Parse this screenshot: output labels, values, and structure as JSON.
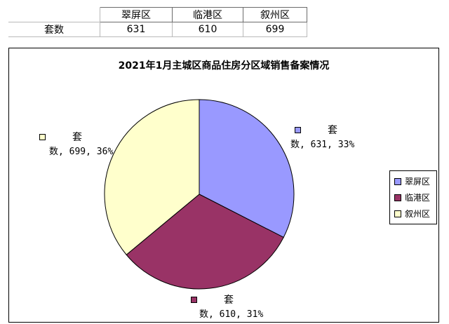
{
  "sheet": {
    "header": [
      "",
      "翠屏区",
      "临港区",
      "叙州区"
    ],
    "row": [
      "套数",
      "631",
      "610",
      "699"
    ]
  },
  "chart_data": {
    "type": "pie",
    "title": "2021年1月主城区商品住房分区域销售备案情况",
    "series_name": "套数",
    "categories": [
      "翠屏区",
      "临港区",
      "叙州区"
    ],
    "values": [
      631,
      610,
      699
    ],
    "colors": [
      "#9999ff",
      "#993366",
      "#ffffcc"
    ],
    "legend_position": "right"
  },
  "data_labels": [
    {
      "line1": "套",
      "line2": "数, 631, 33%"
    },
    {
      "line1": "套",
      "line2": "数, 610, 31%"
    },
    {
      "line1": "套",
      "line2": "数, 699, 36%"
    }
  ]
}
